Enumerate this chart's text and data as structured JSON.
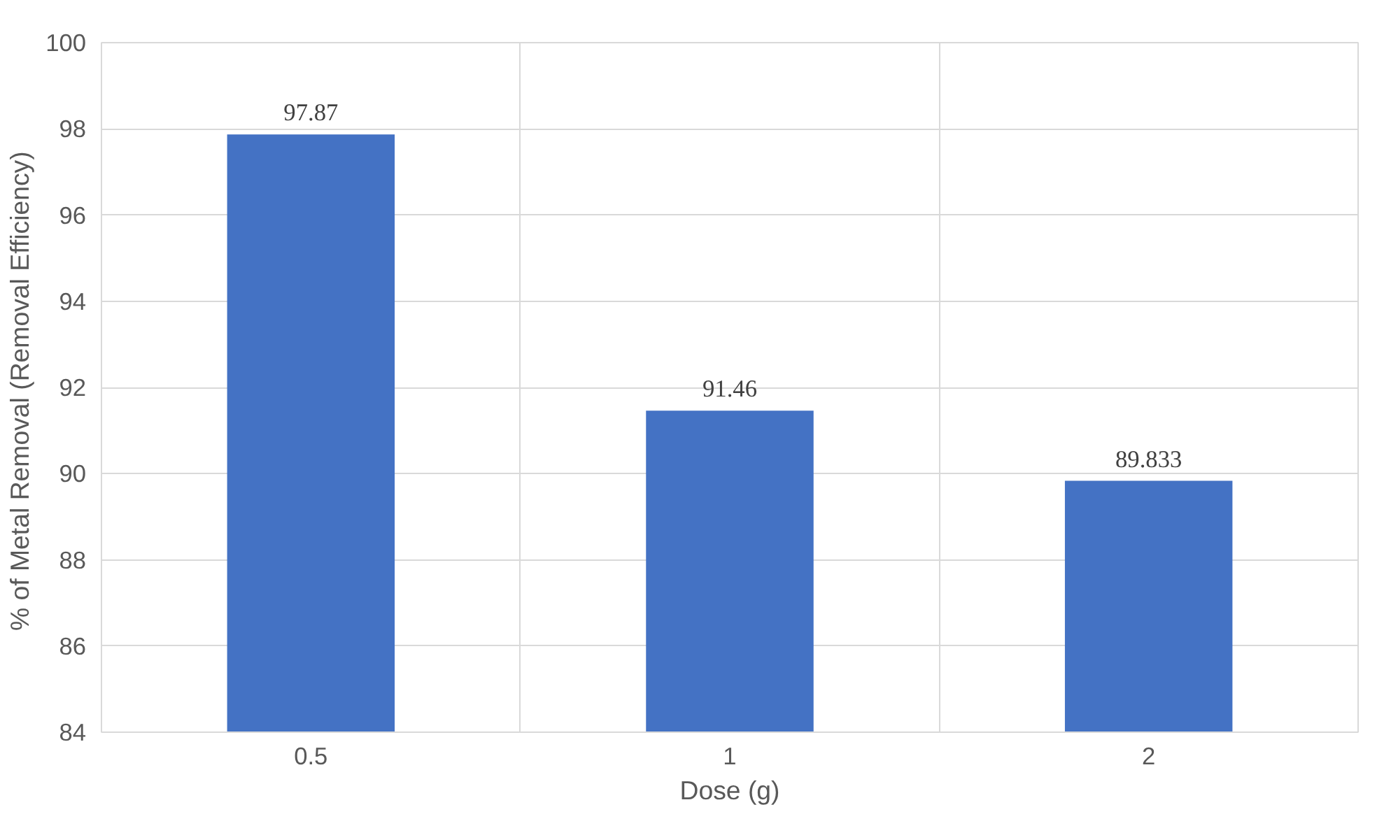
{
  "chart_data": {
    "type": "bar",
    "xlabel": "Dose (g)",
    "ylabel": "%  of Metal Removal (Removal Efficiency)",
    "categories": [
      "0.5",
      "1",
      "2"
    ],
    "values": [
      97.87,
      91.46,
      89.833
    ],
    "color": "#4472c4",
    "ylim": [
      84,
      100
    ],
    "yticks": [
      84,
      86,
      88,
      90,
      92,
      94,
      96,
      98,
      100
    ],
    "grid": true,
    "data_labels": true
  }
}
